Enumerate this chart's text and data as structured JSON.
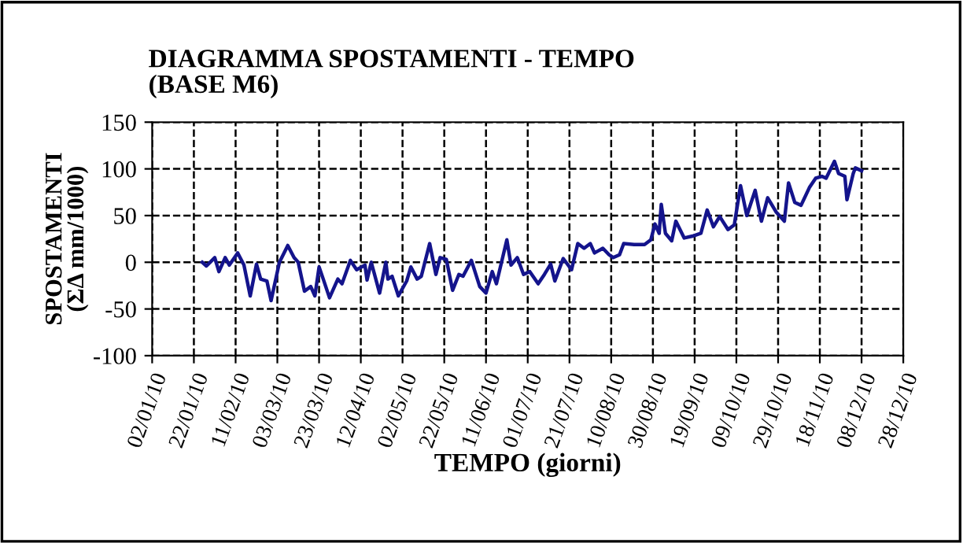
{
  "chart_data": {
    "type": "line",
    "title": "DIAGRAMMA SPOSTAMENTI - TEMPO\n(BASE M6)",
    "xlabel": "TEMPO (giorni)",
    "ylabel": "SPOSTAMENTI\n(ΣΔ mm/1000)",
    "x": [
      "2010-01-26",
      "2010-01-28",
      "2010-02-01",
      "2010-02-03",
      "2010-02-06",
      "2010-02-08",
      "2010-02-12",
      "2010-02-15",
      "2010-02-18",
      "2010-02-21",
      "2010-02-23",
      "2010-02-26",
      "2010-02-28",
      "2010-03-04",
      "2010-03-08",
      "2010-03-11",
      "2010-03-13",
      "2010-03-16",
      "2010-03-19",
      "2010-03-21",
      "2010-03-23",
      "2010-03-25",
      "2010-03-28",
      "2010-04-01",
      "2010-04-03",
      "2010-04-07",
      "2010-04-10",
      "2010-04-14",
      "2010-04-15",
      "2010-04-17",
      "2010-04-21",
      "2010-04-24",
      "2010-04-25",
      "2010-04-27",
      "2010-04-30",
      "2010-05-04",
      "2010-05-06",
      "2010-05-09",
      "2010-05-11",
      "2010-05-15",
      "2010-05-18",
      "2010-05-20",
      "2010-05-23",
      "2010-05-26",
      "2010-05-29",
      "2010-05-31",
      "2010-06-04",
      "2010-06-08",
      "2010-06-11",
      "2010-06-14",
      "2010-06-16",
      "2010-06-21",
      "2010-06-23",
      "2010-06-26",
      "2010-06-29",
      "2010-07-02",
      "2010-07-06",
      "2010-07-09",
      "2010-07-12",
      "2010-07-14",
      "2010-07-18",
      "2010-07-22",
      "2010-07-25",
      "2010-07-28",
      "2010-07-31",
      "2010-08-02",
      "2010-08-06",
      "2010-08-09",
      "2010-08-11",
      "2010-08-14",
      "2010-08-16",
      "2010-08-21",
      "2010-08-26",
      "2010-08-29",
      "2010-08-31",
      "2010-09-02",
      "2010-09-03",
      "2010-09-05",
      "2010-09-08",
      "2010-09-10",
      "2010-09-14",
      "2010-09-18",
      "2010-09-22",
      "2010-09-25",
      "2010-09-28",
      "2010-10-01",
      "2010-10-05",
      "2010-10-08",
      "2010-10-11",
      "2010-10-14",
      "2010-10-18",
      "2010-10-21",
      "2010-10-24",
      "2010-10-28",
      "2010-11-01",
      "2010-11-03",
      "2010-11-06",
      "2010-11-09",
      "2010-11-13",
      "2010-11-16",
      "2010-11-19",
      "2010-11-21",
      "2010-11-25",
      "2010-11-27",
      "2010-11-30",
      "2010-12-01",
      "2010-12-04",
      "2010-12-05",
      "2010-12-08"
    ],
    "series": [
      {
        "color": "#14148c",
        "values": [
          0,
          -4,
          5,
          -10,
          5,
          -3,
          10,
          -3,
          -36,
          -2,
          -18,
          -20,
          -41,
          0,
          18,
          5,
          0,
          -31,
          -26,
          -36,
          -5,
          -18,
          -38,
          -18,
          -23,
          2,
          -8,
          -3,
          -19,
          0,
          -33,
          0,
          -18,
          -15,
          -36,
          -20,
          -5,
          -18,
          -15,
          20,
          -13,
          5,
          3,
          -30,
          -13,
          -15,
          2,
          -26,
          -33,
          -10,
          -23,
          24,
          -3,
          5,
          -13,
          -10,
          -23,
          -13,
          -2,
          -20,
          4,
          -8,
          20,
          15,
          20,
          10,
          15,
          8,
          5,
          8,
          20,
          19,
          19,
          24,
          41,
          31,
          62,
          31,
          23,
          44,
          26,
          28,
          31,
          56,
          38,
          49,
          35,
          40,
          82,
          50,
          77,
          44,
          69,
          54,
          44,
          85,
          64,
          61,
          80,
          90,
          92,
          90,
          108,
          95,
          92,
          67,
          95,
          101,
          98
        ]
      }
    ],
    "xlim": [
      "2010-01-02",
      "2010-12-28"
    ],
    "xticks": [
      {
        "value": "2010-01-02",
        "label": "02/01/10"
      },
      {
        "value": "2010-01-22",
        "label": "22/01/10"
      },
      {
        "value": "2010-02-11",
        "label": "11/02/10"
      },
      {
        "value": "2010-03-03",
        "label": "03/03/10"
      },
      {
        "value": "2010-03-23",
        "label": "23/03/10"
      },
      {
        "value": "2010-04-12",
        "label": "12/04/10"
      },
      {
        "value": "2010-05-02",
        "label": "02/05/10"
      },
      {
        "value": "2010-05-22",
        "label": "22/05/10"
      },
      {
        "value": "2010-06-11",
        "label": "11/06/10"
      },
      {
        "value": "2010-07-01",
        "label": "01/07/10"
      },
      {
        "value": "2010-07-21",
        "label": "21/07/10"
      },
      {
        "value": "2010-08-10",
        "label": "10/08/10"
      },
      {
        "value": "2010-08-30",
        "label": "30/08/10"
      },
      {
        "value": "2010-09-19",
        "label": "19/09/10"
      },
      {
        "value": "2010-10-09",
        "label": "09/10/10"
      },
      {
        "value": "2010-10-29",
        "label": "29/10/10"
      },
      {
        "value": "2010-11-18",
        "label": "18/11/10"
      },
      {
        "value": "2010-12-08",
        "label": "08/12/10"
      },
      {
        "value": "2010-12-28",
        "label": "28/12/10"
      }
    ],
    "ylim": [
      -100,
      150
    ],
    "yticks": [
      -100,
      -50,
      0,
      50,
      100,
      150
    ],
    "grid": true,
    "line_style": "solid",
    "marker": "none"
  }
}
